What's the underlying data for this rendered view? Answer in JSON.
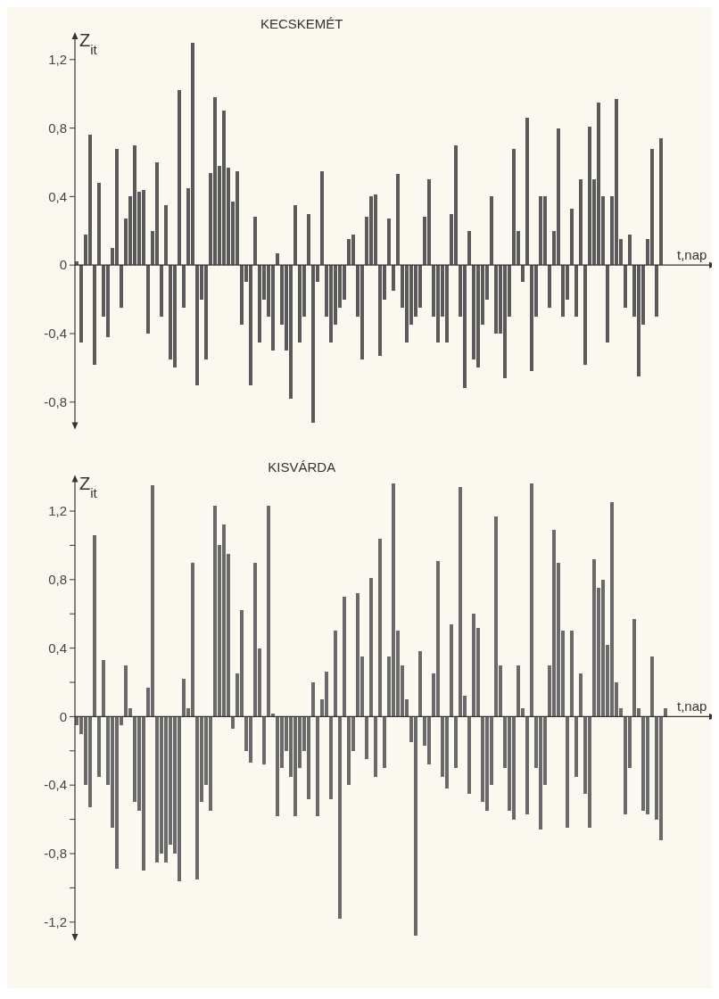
{
  "chart_data": [
    {
      "type": "bar",
      "title": "KECSKEMÉT",
      "xlabel": "t,nap",
      "ylabel": "Z$_{it}$",
      "color": "#5a5a5a",
      "tick_labels": "y",
      "ylim": [
        -0.95,
        1.35
      ],
      "yticks": [
        {
          "value": 1.2,
          "label": "1,2"
        },
        {
          "value": 0.8,
          "label": "0,8"
        },
        {
          "value": 0.4,
          "label": "0,4"
        },
        0,
        {
          "value": -0.4,
          "label": "-0,4"
        },
        {
          "value": -0.8,
          "label": "-0,8"
        }
      ],
      "categories": [
        null,
        null,
        null,
        null,
        null,
        null,
        null,
        null,
        null,
        null,
        null,
        null,
        null,
        null,
        null,
        null,
        null,
        null,
        null,
        null,
        null,
        null,
        null,
        null,
        null,
        null,
        null,
        null,
        null,
        null,
        null,
        null,
        null,
        null,
        null,
        null,
        null,
        null,
        null,
        null,
        null,
        null,
        null,
        null,
        null,
        null,
        null,
        null,
        null,
        null,
        null,
        null,
        null,
        null,
        null,
        null,
        null,
        null,
        null,
        null,
        null,
        null,
        null,
        null,
        null,
        null,
        null,
        null,
        null,
        null,
        null,
        null,
        null,
        null,
        null,
        null,
        null,
        null,
        null,
        null,
        null,
        null,
        null,
        null,
        null,
        null,
        null,
        null,
        null,
        null,
        null,
        null,
        null,
        null,
        null,
        null,
        null,
        null,
        null,
        null,
        null,
        null,
        null,
        null,
        null,
        null,
        null,
        null,
        null,
        null,
        null,
        null,
        null,
        null,
        null,
        null,
        null,
        null,
        null,
        null,
        null,
        null,
        null,
        null,
        null,
        null,
        null,
        null,
        null,
        null,
        null,
        null
      ],
      "values": [
        0.02,
        -0.45,
        0.18,
        0.76,
        -0.58,
        0.48,
        -0.3,
        -0.42,
        0.1,
        0.68,
        -0.25,
        0.27,
        0.4,
        0.7,
        0.43,
        0.44,
        -0.4,
        0.2,
        0.6,
        -0.3,
        0.35,
        -0.55,
        -0.6,
        1.02,
        -0.25,
        0.45,
        1.3,
        -0.7,
        -0.2,
        -0.55,
        0.54,
        0.98,
        0.58,
        0.9,
        0.57,
        0.37,
        0.55,
        -0.35,
        -0.1,
        -0.7,
        0.28,
        -0.45,
        -0.2,
        -0.3,
        -0.5,
        0.07,
        -0.35,
        -0.5,
        -0.78,
        0.35,
        -0.45,
        -0.3,
        0.3,
        -0.92,
        -0.1,
        0.55,
        -0.3,
        -0.45,
        -0.35,
        -0.25,
        -0.2,
        0.15,
        0.18,
        -0.3,
        -0.55,
        0.28,
        0.4,
        0.41,
        -0.53,
        -0.2,
        0.27,
        -0.15,
        0.53,
        -0.25,
        -0.45,
        -0.35,
        -0.3,
        -0.25,
        0.28,
        0.5,
        -0.3,
        -0.45,
        -0.3,
        -0.45,
        0.3,
        0.7,
        -0.3,
        -0.72,
        0.2,
        -0.55,
        -0.6,
        -0.35,
        -0.2,
        0.4,
        -0.4,
        -0.4,
        -0.66,
        -0.3,
        0.68,
        0.2,
        -0.1,
        0.86,
        -0.62,
        -0.3,
        0.4,
        0.4,
        -0.25,
        0.2,
        0.8,
        -0.3,
        -0.2,
        0.33,
        -0.3,
        0.5,
        -0.58,
        0.81,
        0.5,
        0.95,
        0.4,
        -0.45,
        0.4,
        0.97,
        0.15,
        -0.25,
        0.18,
        -0.3,
        -0.65,
        -0.35,
        0.15,
        0.68,
        -0.3,
        0.74
      ]
    },
    {
      "type": "bar",
      "title": "KISVÁRDA",
      "xlabel": "t,nap",
      "ylabel": "Z$_{it}$",
      "color": "#6a6a6a",
      "tick_labels": "y",
      "ylim": [
        -1.3,
        1.4
      ],
      "yticks": [
        {
          "value": 1.2,
          "label": "1,2"
        },
        {
          "value": 1.0,
          "label": null
        },
        {
          "value": 0.8,
          "label": "0,8"
        },
        {
          "value": 0.6,
          "label": null
        },
        {
          "value": 0.4,
          "label": "0,4"
        },
        {
          "value": 0.2,
          "label": null
        },
        0,
        {
          "value": -0.2,
          "label": null
        },
        {
          "value": -0.4,
          "label": "-0,4"
        },
        {
          "value": -0.6,
          "label": null
        },
        {
          "value": -0.8,
          "label": "-0,8"
        },
        {
          "value": -1.0,
          "label": null
        },
        {
          "value": -1.2,
          "label": "-1,2"
        }
      ],
      "categories": [
        null,
        null,
        null,
        null,
        null,
        null,
        null,
        null,
        null,
        null,
        null,
        null,
        null,
        null,
        null,
        null,
        null,
        null,
        null,
        null,
        null,
        null,
        null,
        null,
        null,
        null,
        null,
        null,
        null,
        null,
        null,
        null,
        null,
        null,
        null,
        null,
        null,
        null,
        null,
        null,
        null,
        null,
        null,
        null,
        null,
        null,
        null,
        null,
        null,
        null,
        null,
        null,
        null,
        null,
        null,
        null,
        null,
        null,
        null,
        null,
        null,
        null,
        null,
        null,
        null,
        null,
        null,
        null,
        null,
        null,
        null,
        null,
        null,
        null,
        null,
        null,
        null,
        null,
        null,
        null,
        null,
        null,
        null,
        null,
        null,
        null,
        null,
        null,
        null,
        null,
        null,
        null,
        null,
        null,
        null,
        null,
        null,
        null,
        null,
        null,
        null,
        null,
        null,
        null,
        null,
        null,
        null,
        null,
        null,
        null,
        null,
        null,
        null,
        null,
        null,
        null,
        null,
        null,
        null,
        null,
        null,
        null,
        null,
        null,
        null,
        null,
        null,
        null,
        null,
        null,
        null,
        null,
        null
      ],
      "values": [
        -0.05,
        -0.1,
        -0.4,
        -0.53,
        1.06,
        -0.35,
        0.33,
        -0.4,
        -0.65,
        -0.89,
        -0.05,
        0.3,
        0.05,
        -0.5,
        -0.55,
        -0.9,
        0.17,
        1.35,
        -0.85,
        -0.8,
        -0.85,
        -0.75,
        -0.8,
        -0.96,
        0.22,
        0.05,
        0.9,
        -0.95,
        -0.5,
        -0.4,
        -0.55,
        1.23,
        1.0,
        1.12,
        0.95,
        -0.07,
        0.25,
        0.62,
        -0.2,
        -0.27,
        0.9,
        0.4,
        -0.28,
        1.23,
        0.02,
        -0.58,
        -0.3,
        -0.2,
        -0.35,
        -0.58,
        -0.3,
        -0.2,
        -0.48,
        0.2,
        -0.58,
        0.1,
        0.26,
        -0.48,
        0.5,
        -1.18,
        0.7,
        -0.4,
        -0.2,
        0.72,
        0.35,
        -0.25,
        0.81,
        -0.35,
        1.04,
        -0.3,
        0.35,
        1.36,
        0.5,
        0.3,
        0.1,
        -0.15,
        -1.28,
        0.38,
        -0.17,
        -0.28,
        0.25,
        0.91,
        -0.35,
        -0.42,
        0.54,
        -0.3,
        1.34,
        0.12,
        -0.45,
        0.6,
        0.52,
        -0.5,
        -0.55,
        -0.4,
        1.17,
        0.3,
        -0.3,
        -0.55,
        -0.6,
        0.3,
        0.05,
        -0.57,
        1.36,
        -0.3,
        -0.66,
        -0.4,
        0.3,
        1.09,
        0.9,
        0.5,
        -0.65,
        0.5,
        -0.35,
        0.25,
        -0.45,
        -0.65,
        0.92,
        0.75,
        0.8,
        0.42,
        1.25,
        0.2,
        0.05,
        -0.57,
        -0.3,
        0.57,
        0.05,
        -0.55,
        -0.57,
        0.35,
        -0.6,
        -0.72,
        0.05
      ]
    }
  ]
}
